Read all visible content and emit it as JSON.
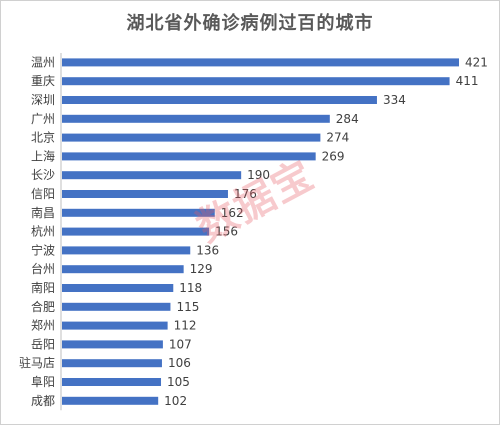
{
  "title": "湖北省外确诊病例过百的城市",
  "watermark": "数据宝",
  "colors": {
    "bar": "#4472C4",
    "axis": "#bfbfbf",
    "text": "#404040",
    "title": "#595959"
  },
  "chart_data": {
    "type": "bar",
    "orientation": "horizontal",
    "title": "湖北省外确诊病例过百的城市",
    "categories": [
      "温州",
      "重庆",
      "深圳",
      "广州",
      "北京",
      "上海",
      "长沙",
      "信阳",
      "南昌",
      "杭州",
      "宁波",
      "台州",
      "南阳",
      "合肥",
      "郑州",
      "岳阳",
      "驻马店",
      "阜阳",
      "成都"
    ],
    "values": [
      421,
      411,
      334,
      284,
      274,
      269,
      190,
      176,
      162,
      156,
      136,
      129,
      118,
      115,
      112,
      107,
      106,
      105,
      102
    ],
    "xlim": [
      0,
      421
    ],
    "grid": false,
    "data_labels": true
  }
}
